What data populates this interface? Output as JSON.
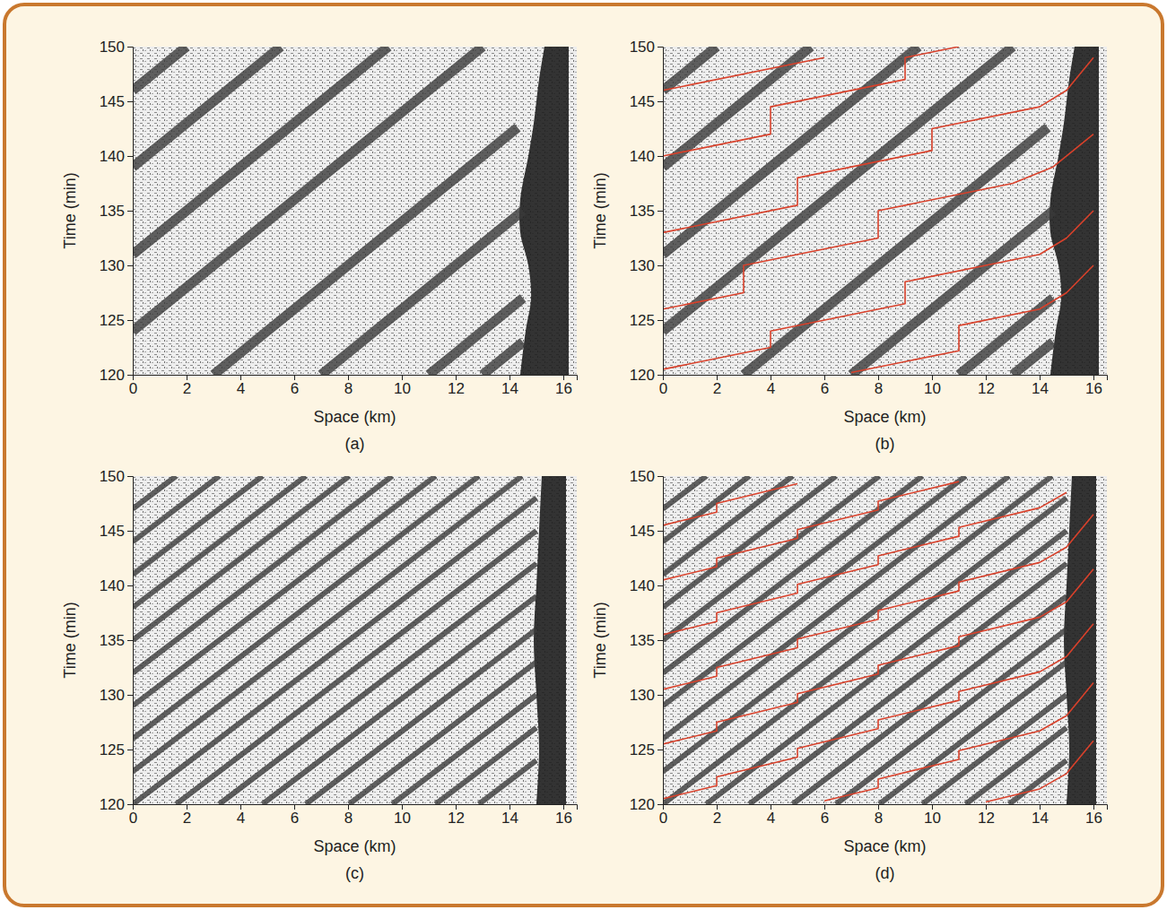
{
  "chart_data": [
    {
      "type": "line",
      "label": "(a)",
      "xlabel": "Space (km)",
      "ylabel": "Time (min)",
      "xlim": [
        0,
        16.5
      ],
      "ylim": [
        120,
        150
      ],
      "xticks": [
        0,
        2,
        4,
        6,
        8,
        10,
        12,
        14,
        16
      ],
      "yticks": [
        120,
        125,
        130,
        135,
        140,
        145,
        150
      ],
      "series": [
        {
          "type": "area",
          "color": "#1e1e1e",
          "x": [
            14.4,
            14.6,
            14.8,
            14.7,
            14.4,
            14.4,
            14.7,
            14.9,
            15.1,
            15.3
          ],
          "x2": [
            16.2,
            16.2,
            16.2,
            16.2,
            16.2,
            16.2,
            16.2,
            16.2,
            16.2,
            16.2
          ],
          "values": [
            120,
            124,
            127,
            130,
            133,
            136,
            140,
            143,
            147,
            150
          ]
        },
        {
          "type": "line",
          "color": "#3a3a3a",
          "line_style": "wide",
          "x": [
            11,
            14.5,
            null,
            7,
            14.5,
            null,
            3,
            14.3,
            null,
            0,
            13,
            null,
            0,
            9.5,
            null,
            0,
            5.5,
            null,
            0,
            2,
            null,
            13,
            14.5
          ],
          "values": [
            120,
            127,
            null,
            120,
            135,
            null,
            120,
            142.6,
            null,
            124,
            150,
            null,
            131,
            150,
            null,
            139,
            150,
            null,
            146,
            150,
            null,
            120,
            123
          ]
        }
      ]
    },
    {
      "type": "line",
      "label": "(b)",
      "xlabel": "Space (km)",
      "ylabel": "Time (min)",
      "xlim": [
        0,
        16.5
      ],
      "ylim": [
        120,
        150
      ],
      "xticks": [
        0,
        2,
        4,
        6,
        8,
        10,
        12,
        14,
        16
      ],
      "yticks": [
        120,
        125,
        130,
        135,
        140,
        145,
        150
      ],
      "series": [
        {
          "type": "area",
          "color": "#1e1e1e",
          "x": [
            14.4,
            14.6,
            14.8,
            14.7,
            14.4,
            14.4,
            14.7,
            14.9,
            15.1,
            15.3
          ],
          "x2": [
            16.2,
            16.2,
            16.2,
            16.2,
            16.2,
            16.2,
            16.2,
            16.2,
            16.2,
            16.2
          ],
          "values": [
            120,
            124,
            127,
            130,
            133,
            136,
            140,
            143,
            147,
            150
          ]
        },
        {
          "type": "line",
          "color": "#3a3a3a",
          "line_style": "wide",
          "x": [
            11,
            14.5,
            null,
            7,
            14.5,
            null,
            3,
            14.3,
            null,
            0,
            13,
            null,
            0,
            9.5,
            null,
            0,
            5.5,
            null,
            0,
            2,
            null,
            13,
            14.5
          ],
          "values": [
            120,
            127,
            null,
            120,
            135,
            null,
            120,
            142.6,
            null,
            124,
            150,
            null,
            131,
            150,
            null,
            139,
            150,
            null,
            146,
            150,
            null,
            120,
            123
          ]
        },
        {
          "type": "line",
          "color": "#d9412b",
          "line_style": "solid",
          "x": [
            0,
            4,
            4,
            9,
            9,
            14,
            15,
            16
          ],
          "values": [
            120.5,
            122.5,
            124,
            126.5,
            128.5,
            131,
            132.5,
            135
          ]
        },
        {
          "type": "line",
          "color": "#d9412b",
          "line_style": "solid",
          "x": [
            0,
            3,
            3,
            8,
            8,
            13,
            14.5,
            16
          ],
          "values": [
            126,
            127.5,
            130,
            132.5,
            135,
            137.5,
            139,
            142
          ]
        },
        {
          "type": "line",
          "color": "#d9412b",
          "line_style": "solid",
          "x": [
            0,
            5,
            5,
            10,
            10,
            14,
            15,
            16
          ],
          "values": [
            133,
            135.5,
            138,
            140.5,
            142.5,
            144.5,
            146,
            149
          ]
        },
        {
          "type": "line",
          "color": "#d9412b",
          "line_style": "solid",
          "x": [
            0,
            4,
            4,
            9,
            9,
            11
          ],
          "values": [
            140,
            142,
            144.5,
            147,
            149,
            150
          ]
        },
        {
          "type": "line",
          "color": "#d9412b",
          "line_style": "solid",
          "x": [
            0,
            6
          ],
          "values": [
            146,
            149
          ]
        },
        {
          "type": "line",
          "color": "#d9412b",
          "line_style": "solid",
          "x": [
            7,
            11,
            11,
            14,
            15,
            16
          ],
          "values": [
            120.2,
            122.2,
            124.5,
            126,
            127.5,
            130
          ]
        }
      ]
    },
    {
      "type": "line",
      "label": "(c)",
      "xlabel": "Space (km)",
      "ylabel": "Time (min)",
      "xlim": [
        0,
        16.5
      ],
      "ylim": [
        120,
        150
      ],
      "xticks": [
        0,
        2,
        4,
        6,
        8,
        10,
        12,
        14,
        16
      ],
      "yticks": [
        120,
        125,
        130,
        135,
        140,
        145,
        150
      ],
      "series": [
        {
          "type": "area",
          "color": "#1e1e1e",
          "x": [
            15,
            15.1,
            15,
            14.9,
            15,
            15.1,
            15.2
          ],
          "x2": [
            16.1,
            16.1,
            16.1,
            16.1,
            16.1,
            16.1,
            16.1
          ],
          "values": [
            120,
            125,
            130,
            135,
            140,
            145,
            150
          ]
        },
        {
          "type": "line",
          "color": "#3a3a3a",
          "line_style": "narrow",
          "x": [
            12.86,
            15,
            null,
            11.25,
            15,
            null,
            9.64,
            15,
            null,
            8.04,
            15,
            null,
            6.43,
            15,
            null,
            4.82,
            15,
            null,
            3.21,
            15,
            null,
            1.61,
            15,
            null,
            0,
            15,
            null,
            0,
            14.46,
            null,
            0,
            12.86,
            null,
            0,
            11.25,
            null,
            0,
            9.64,
            null,
            0,
            8.04,
            null,
            0,
            6.43,
            null,
            0,
            4.82,
            null,
            0,
            3.21,
            null,
            0,
            1.61
          ],
          "values": [
            120,
            124,
            null,
            120,
            127,
            null,
            120,
            130,
            null,
            120,
            133,
            null,
            120,
            136,
            null,
            120,
            139,
            null,
            120,
            142,
            null,
            120,
            145,
            null,
            120,
            148,
            null,
            123,
            150,
            null,
            126,
            150,
            null,
            129,
            150,
            null,
            132,
            150,
            null,
            135,
            150,
            null,
            138,
            150,
            null,
            141,
            150,
            null,
            144,
            150,
            null,
            147,
            150
          ]
        }
      ]
    },
    {
      "type": "line",
      "label": "(d)",
      "xlabel": "Space (km)",
      "ylabel": "Time (min)",
      "xlim": [
        0,
        16.5
      ],
      "ylim": [
        120,
        150
      ],
      "xticks": [
        0,
        2,
        4,
        6,
        8,
        10,
        12,
        14,
        16
      ],
      "yticks": [
        120,
        125,
        130,
        135,
        140,
        145,
        150
      ],
      "series": [
        {
          "type": "area",
          "color": "#1e1e1e",
          "x": [
            15,
            15.1,
            15,
            14.9,
            15,
            15.1,
            15.2
          ],
          "x2": [
            16.1,
            16.1,
            16.1,
            16.1,
            16.1,
            16.1,
            16.1
          ],
          "values": [
            120,
            125,
            130,
            135,
            140,
            145,
            150
          ]
        },
        {
          "type": "line",
          "color": "#3a3a3a",
          "line_style": "narrow",
          "x": [
            12.86,
            15,
            null,
            11.25,
            15,
            null,
            9.64,
            15,
            null,
            8.04,
            15,
            null,
            6.43,
            15,
            null,
            4.82,
            15,
            null,
            3.21,
            15,
            null,
            1.61,
            15,
            null,
            0,
            15,
            null,
            0,
            14.46,
            null,
            0,
            12.86,
            null,
            0,
            11.25,
            null,
            0,
            9.64,
            null,
            0,
            8.04,
            null,
            0,
            6.43,
            null,
            0,
            4.82,
            null,
            0,
            3.21,
            null,
            0,
            1.61
          ],
          "values": [
            120,
            124,
            null,
            120,
            127,
            null,
            120,
            130,
            null,
            120,
            133,
            null,
            120,
            136,
            null,
            120,
            139,
            null,
            120,
            142,
            null,
            120,
            145,
            null,
            120,
            148,
            null,
            123,
            150,
            null,
            126,
            150,
            null,
            129,
            150,
            null,
            132,
            150,
            null,
            135,
            150,
            null,
            138,
            150,
            null,
            141,
            150,
            null,
            144,
            150,
            null,
            147,
            150
          ]
        },
        {
          "type": "line",
          "color": "#d9412b",
          "line_style": "solid",
          "x": [
            0,
            2,
            2,
            5,
            5,
            8,
            8,
            11,
            11,
            14,
            15,
            16
          ],
          "values": [
            120.5,
            121.7,
            122.5,
            124.3,
            125.1,
            126.9,
            127.7,
            129.5,
            130.3,
            132.1,
            133.5,
            136.5
          ]
        },
        {
          "type": "line",
          "color": "#d9412b",
          "line_style": "solid",
          "x": [
            0,
            2,
            2,
            5,
            5,
            8,
            8,
            11,
            11,
            14,
            15,
            16
          ],
          "values": [
            125.5,
            126.7,
            127.5,
            129.3,
            130.1,
            131.9,
            132.7,
            134.5,
            135.3,
            137.1,
            138.5,
            141.5
          ]
        },
        {
          "type": "line",
          "color": "#d9412b",
          "line_style": "solid",
          "x": [
            0,
            2,
            2,
            5,
            5,
            8,
            8,
            11,
            11,
            14,
            15,
            16
          ],
          "values": [
            130.5,
            131.7,
            132.5,
            134.3,
            135.1,
            136.9,
            137.7,
            139.5,
            140.3,
            142.1,
            143.5,
            146.5
          ]
        },
        {
          "type": "line",
          "color": "#d9412b",
          "line_style": "solid",
          "x": [
            0,
            2,
            2,
            5,
            5,
            8,
            8,
            11,
            11,
            14,
            15
          ],
          "values": [
            135.5,
            136.7,
            137.5,
            139.3,
            140.1,
            141.9,
            142.7,
            144.5,
            145.3,
            147.1,
            148.5
          ]
        },
        {
          "type": "line",
          "color": "#d9412b",
          "line_style": "solid",
          "x": [
            0,
            2,
            2,
            5,
            5,
            8,
            8,
            11
          ],
          "values": [
            140.5,
            141.7,
            142.5,
            144.3,
            145.1,
            146.9,
            147.7,
            149.5
          ]
        },
        {
          "type": "line",
          "color": "#d9412b",
          "line_style": "solid",
          "x": [
            0,
            2,
            2,
            5
          ],
          "values": [
            145.5,
            146.7,
            147.5,
            149.3
          ]
        },
        {
          "type": "line",
          "color": "#d9412b",
          "line_style": "solid",
          "x": [
            6,
            8,
            8,
            11,
            11,
            14,
            15,
            16
          ],
          "values": [
            120.3,
            121.5,
            122.3,
            124.1,
            124.9,
            126.7,
            128.1,
            131.1
          ]
        },
        {
          "type": "line",
          "color": "#d9412b",
          "line_style": "solid",
          "x": [
            12,
            14,
            15,
            16
          ],
          "values": [
            120.2,
            121.4,
            122.8,
            125.8
          ]
        }
      ]
    }
  ]
}
